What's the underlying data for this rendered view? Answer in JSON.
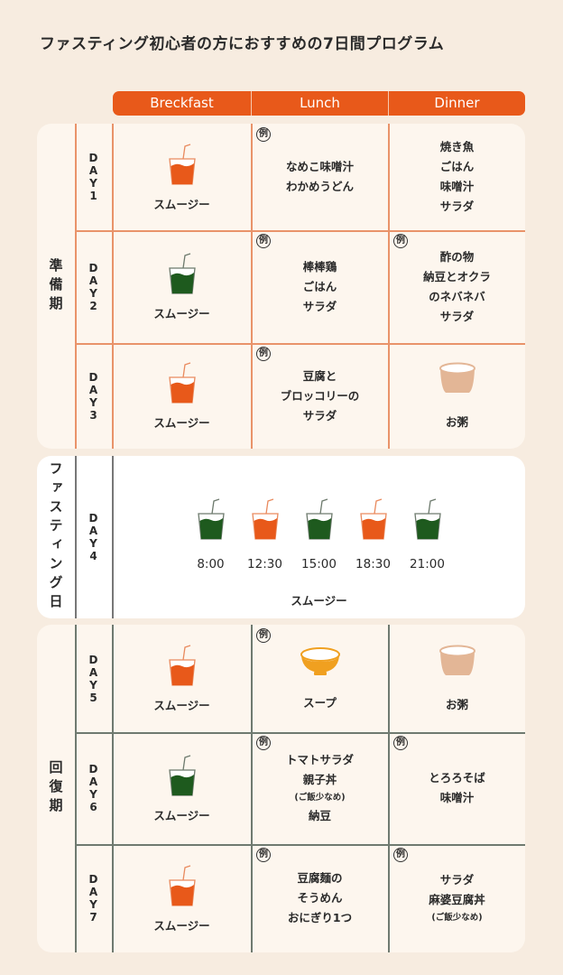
{
  "header": {
    "title": "ファスティング初心者の方におすすめの7日間プログラム"
  },
  "columns": [
    "Breckfast",
    "Lunch",
    "Dinner"
  ],
  "example_label": "例",
  "colors": {
    "accent": "#e8591a",
    "green": "#1e5a1e",
    "soup": "#f0a020",
    "okayu": "#e3b696"
  },
  "prep": {
    "phase": "準備期",
    "days": [
      {
        "day": "DAY1",
        "breakfast": {
          "icon": "smoothie-cup-orange",
          "label": "スムージー"
        },
        "lunch": {
          "example": true,
          "lines": [
            "なめこ味噌汁",
            "わかめうどん"
          ]
        },
        "dinner": {
          "example": false,
          "lines": [
            "焼き魚",
            "ごはん",
            "味噌汁",
            "サラダ"
          ]
        }
      },
      {
        "day": "DAY2",
        "breakfast": {
          "icon": "smoothie-cup-green",
          "label": "スムージー"
        },
        "lunch": {
          "example": true,
          "lines": [
            "棒棒鶏",
            "ごはん",
            "サラダ"
          ]
        },
        "dinner": {
          "example": true,
          "lines": [
            "酢の物",
            "納豆とオクラ",
            "のネバネバ",
            "サラダ"
          ]
        }
      },
      {
        "day": "DAY3",
        "breakfast": {
          "icon": "smoothie-cup-orange",
          "label": "スムージー"
        },
        "lunch": {
          "example": true,
          "lines": [
            "豆腐と",
            "ブロッコリーの",
            "サラダ"
          ]
        },
        "dinner": {
          "example": false,
          "icon": "okayu-bowl",
          "label": "お粥"
        }
      }
    ]
  },
  "fasting": {
    "phase": "ファスティング日",
    "day": "DAY4",
    "label": "スムージー",
    "times": [
      {
        "time": "8:00",
        "icon": "smoothie-cup-green"
      },
      {
        "time": "12:30",
        "icon": "smoothie-cup-orange"
      },
      {
        "time": "15:00",
        "icon": "smoothie-cup-green"
      },
      {
        "time": "18:30",
        "icon": "smoothie-cup-orange"
      },
      {
        "time": "21:00",
        "icon": "smoothie-cup-green"
      }
    ]
  },
  "recovery": {
    "phase": "回復期",
    "days": [
      {
        "day": "DAY5",
        "breakfast": {
          "icon": "smoothie-cup-orange",
          "label": "スムージー"
        },
        "lunch": {
          "example": true,
          "icon": "soup-bowl",
          "label": "スープ"
        },
        "dinner": {
          "example": false,
          "icon": "okayu-bowl",
          "label": "お粥"
        }
      },
      {
        "day": "DAY6",
        "breakfast": {
          "icon": "smoothie-cup-green",
          "label": "スムージー"
        },
        "lunch": {
          "example": true,
          "lines": [
            "トマトサラダ",
            "親子丼",
            "(ご飯少なめ)",
            "納豆"
          ]
        },
        "dinner": {
          "example": true,
          "lines": [
            "とろろそば",
            "味噌汁"
          ]
        }
      },
      {
        "day": "DAY7",
        "breakfast": {
          "icon": "smoothie-cup-orange",
          "label": "スムージー"
        },
        "lunch": {
          "example": true,
          "lines": [
            "豆腐麺の",
            "そうめん",
            "おにぎり1つ"
          ]
        },
        "dinner": {
          "example": true,
          "lines": [
            "サラダ",
            "麻婆豆腐丼",
            "(ご飯少なめ)"
          ]
        }
      }
    ]
  }
}
